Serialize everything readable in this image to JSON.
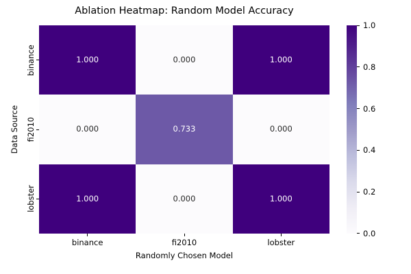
{
  "chart_data": {
    "type": "heatmap",
    "title": "Ablation Heatmap: Random Model Accuracy",
    "xlabel": "Randomly Chosen Model",
    "ylabel": "Data Source",
    "x_categories": [
      "binance",
      "fi2010",
      "lobster"
    ],
    "y_categories": [
      "binance",
      "fi2010",
      "lobster"
    ],
    "values": [
      [
        1.0,
        0.0,
        1.0
      ],
      [
        0.0,
        0.733,
        0.0
      ],
      [
        1.0,
        0.0,
        1.0
      ]
    ],
    "cell_labels": [
      [
        "1.000",
        "0.000",
        "1.000"
      ],
      [
        "0.000",
        "0.733",
        "0.000"
      ],
      [
        "1.000",
        "0.000",
        "1.000"
      ]
    ],
    "cell_colors": [
      [
        "#3f007d",
        "#fcfbfd",
        "#3f007d"
      ],
      [
        "#fcfbfd",
        "#6d59a7",
        "#fcfbfd"
      ],
      [
        "#3f007d",
        "#fcfbfd",
        "#3f007d"
      ]
    ],
    "cell_text_colors": [
      [
        "#ffffff",
        "#262626",
        "#ffffff"
      ],
      [
        "#262626",
        "#ffffff",
        "#262626"
      ],
      [
        "#ffffff",
        "#262626",
        "#ffffff"
      ]
    ],
    "colormap": "Purples",
    "colormap_stops": [
      "#fcfbfd",
      "#efedf5",
      "#dadaeb",
      "#bcbddc",
      "#9e9ac8",
      "#807dba",
      "#6a51a3",
      "#54278f",
      "#3f007d"
    ],
    "vmin": 0.0,
    "vmax": 1.0,
    "grid": false,
    "legend_position": "right-colorbar",
    "colorbar": {
      "ticks": [
        "0.0",
        "0.2",
        "0.4",
        "0.6",
        "0.8",
        "1.0"
      ]
    }
  }
}
